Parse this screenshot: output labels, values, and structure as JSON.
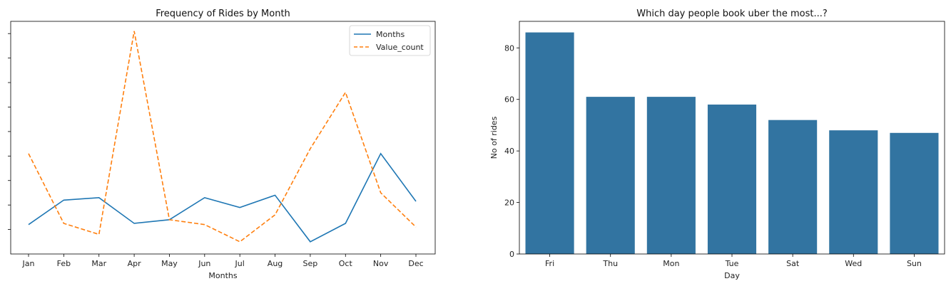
{
  "chart_data": [
    {
      "type": "line",
      "title": "Frequency of Rides by Month",
      "xlabel": "Months",
      "ylabel": "",
      "categories": [
        "Jan",
        "Feb",
        "Mar",
        "Apr",
        "May",
        "Jun",
        "Jul",
        "Aug",
        "Sep",
        "Oct",
        "Nov",
        "Dec"
      ],
      "ylim": [
        0,
        95
      ],
      "series": [
        {
          "name": "Months",
          "color": "#1f77b4",
          "style": "solid",
          "values": [
            12,
            22,
            23,
            12.5,
            14,
            23,
            19,
            24,
            5,
            12.5,
            41,
            21.5
          ]
        },
        {
          "name": "Value_count",
          "color": "#ff7f0e",
          "style": "dashed",
          "values": [
            41,
            12.5,
            8,
            91,
            14,
            12,
            5,
            16,
            43,
            66,
            25,
            11
          ]
        }
      ],
      "legend": "top-right",
      "grid": false
    },
    {
      "type": "bar",
      "title": "Which day people book uber the most...?",
      "xlabel": "Day",
      "ylabel": "No of rides",
      "categories": [
        "Fri",
        "Thu",
        "Mon",
        "Tue",
        "Sat",
        "Wed",
        "Sun"
      ],
      "values": [
        86,
        61,
        61,
        58,
        52,
        48,
        47
      ],
      "yticks": [
        0,
        20,
        40,
        60,
        80
      ],
      "ylim": [
        0,
        90.3
      ],
      "color": "#3274a1",
      "grid": false
    }
  ]
}
